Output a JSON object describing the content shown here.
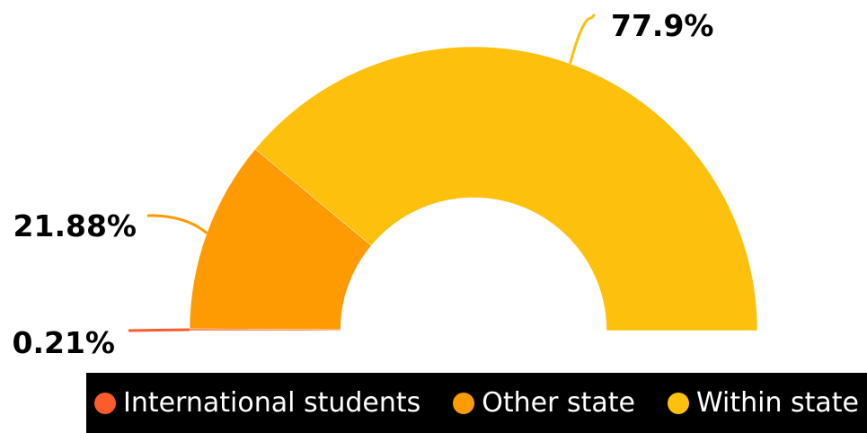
{
  "chart_data": {
    "type": "pie",
    "variant": "semi-donut",
    "categories": [
      "International students",
      "Other state",
      "Within state"
    ],
    "values": [
      0.21,
      21.88,
      77.9
    ],
    "value_labels": [
      "0.21%",
      "21.88%",
      "77.9%"
    ],
    "colors": [
      "#FC5B2A",
      "#FE9B03",
      "#FDC00C"
    ],
    "legend_position": "bottom-right",
    "grid": false
  }
}
